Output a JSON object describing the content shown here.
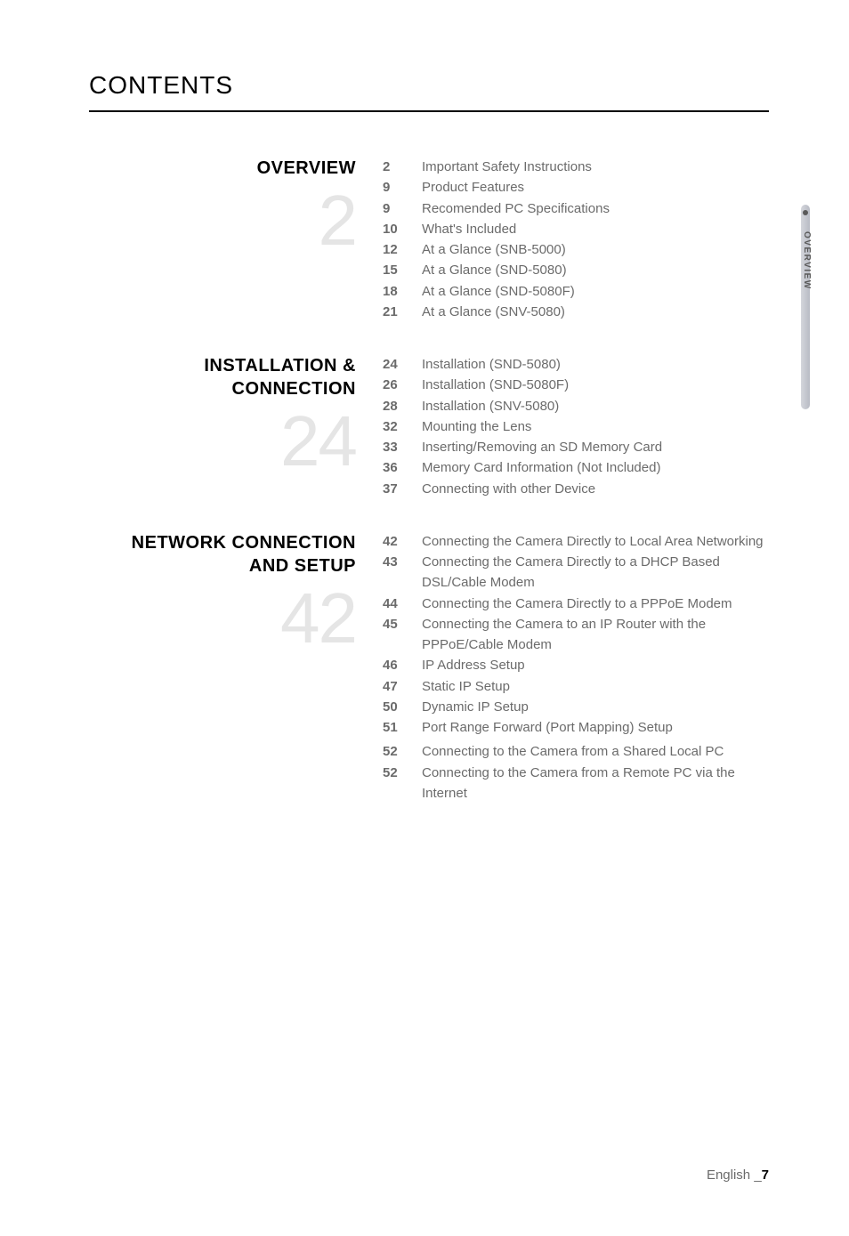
{
  "page_title": "CONTENTS",
  "sections": [
    {
      "heading": "OVERVIEW",
      "big_number": "2",
      "items": [
        {
          "page": "2",
          "text": "Important Safety Instructions"
        },
        {
          "page": "9",
          "text": "Product Features"
        },
        {
          "page": "9",
          "text": "Recomended PC Specifications"
        },
        {
          "page": "10",
          "text": "What's Included"
        },
        {
          "page": "12",
          "text": "At a Glance (SNB-5000)"
        },
        {
          "page": "15",
          "text": "At a Glance (SND-5080)"
        },
        {
          "page": "18",
          "text": "At a Glance (SND-5080F)"
        },
        {
          "page": "21",
          "text": "At a Glance (SNV-5080)"
        }
      ]
    },
    {
      "heading": "INSTALLATION & CONNECTION",
      "big_number": "24",
      "items": [
        {
          "page": "24",
          "text": "Installation (SND-5080)"
        },
        {
          "page": "26",
          "text": "Installation (SND-5080F)"
        },
        {
          "page": "28",
          "text": "Installation (SNV-5080)"
        },
        {
          "page": "32",
          "text": "Mounting the Lens"
        },
        {
          "page": "33",
          "text": "Inserting/Removing an SD Memory Card"
        },
        {
          "page": "36",
          "text": "Memory Card Information (Not Included)"
        },
        {
          "page": "37",
          "text": "Connecting with other Device"
        }
      ]
    },
    {
      "heading": "NETWORK CONNECTION AND SETUP",
      "big_number": "42",
      "items": [
        {
          "page": "42",
          "text": "Connecting the Camera Directly to Local Area Networking"
        },
        {
          "page": "43",
          "text": "Connecting the Camera Directly to a DHCP Based DSL/Cable Modem"
        },
        {
          "page": "44",
          "text": "Connecting the Camera Directly to a PPPoE Modem"
        },
        {
          "page": "45",
          "text": "Connecting the Camera to an IP Router with the PPPoE/Cable Modem"
        },
        {
          "page": "46",
          "text": "IP Address Setup"
        },
        {
          "page": "47",
          "text": "Static IP Setup"
        },
        {
          "page": "50",
          "text": "Dynamic IP Setup"
        },
        {
          "page": "51",
          "text": "Port Range Forward (Port Mapping) Setup"
        },
        {
          "page": "52",
          "text": "Connecting to the Camera from a Shared Local PC",
          "extra_space": true
        },
        {
          "page": "52",
          "text": "Connecting to the Camera from a Remote PC via the Internet"
        }
      ]
    }
  ],
  "side_tab_label": "OVERVIEW",
  "footer_language": "English",
  "footer_separator": "_",
  "footer_page": "7"
}
